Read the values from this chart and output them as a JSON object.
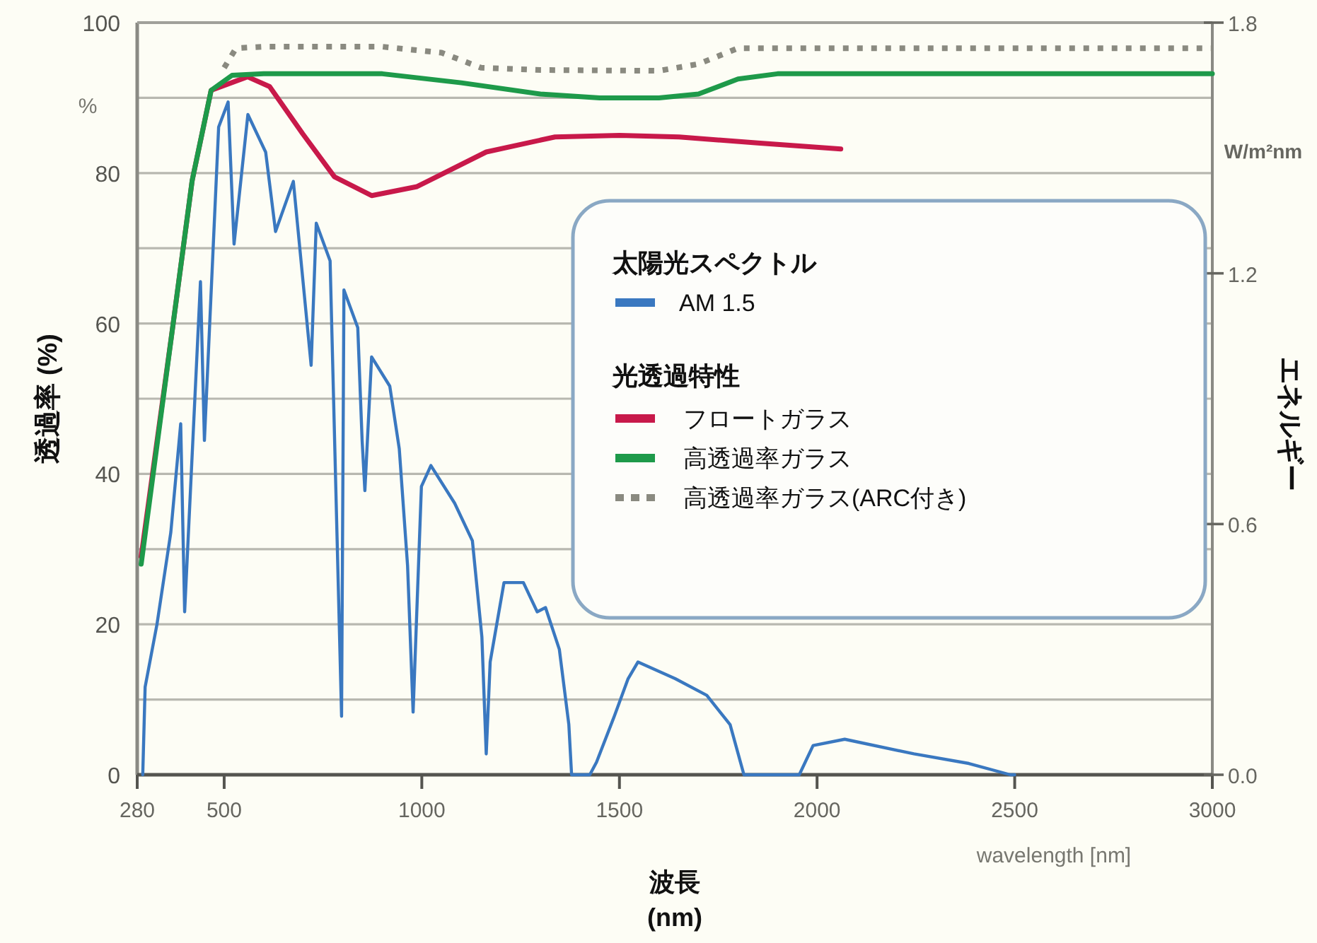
{
  "chart_data": {
    "type": "line",
    "xlabel": "波長 (nm)",
    "ylabel": "透過率 (%)",
    "y2label": "エネルギー",
    "legend_title": "太陽光スペクトル",
    "annotations": [
      "%",
      "W/m²nm",
      "wavelength [nm]",
      "光透過特性"
    ],
    "xlim": [
      280,
      3000
    ],
    "xticks": [
      280,
      500,
      1000,
      1500,
      2000,
      2500,
      3000
    ],
    "ylim": [
      0,
      100
    ],
    "yticks": [
      0,
      {
        "value": 10,
        "label": null
      },
      20,
      {
        "value": 30,
        "label": null
      },
      40,
      {
        "value": 50,
        "label": null
      },
      60,
      {
        "value": 70,
        "label": null
      },
      80,
      {
        "value": 90,
        "label": null
      },
      100
    ],
    "y2lim": [
      0,
      1.8
    ],
    "y2ticks": [
      {
        "value": 0,
        "label": "0.0"
      },
      {
        "value": 0.6,
        "label": "0.6"
      },
      {
        "value": 1.2,
        "label": "1.2"
      },
      {
        "value": 1.8,
        "label": "1.8"
      }
    ],
    "grid": "y",
    "legend": "right",
    "series": [
      {
        "name": "AM 1.5",
        "color": "#3a78c0",
        "axis": "y2",
        "x": [
          294,
          300,
          330,
          365,
          390,
          400,
          440,
          450,
          486,
          510,
          525,
          560,
          605,
          630,
          675,
          720,
          733,
          768,
          797,
          803,
          838,
          849,
          856,
          873,
          919,
          943,
          964,
          978,
          999,
          1023,
          1083,
          1128,
          1152,
          1163,
          1173,
          1208,
          1257,
          1292,
          1313,
          1348,
          1372,
          1379,
          1425,
          1442,
          1487,
          1522,
          1547,
          1641,
          1721,
          1780,
          1815,
          1955,
          1990,
          2070,
          2245,
          2384,
          2489,
          2500
        ],
        "values": [
          0,
          0.21,
          0.36,
          0.58,
          0.84,
          0.39,
          1.18,
          0.8,
          1.55,
          1.61,
          1.27,
          1.58,
          1.49,
          1.3,
          1.42,
          0.98,
          1.32,
          1.23,
          0.14,
          1.16,
          1.07,
          0.8,
          0.68,
          1.0,
          0.93,
          0.78,
          0.5,
          0.15,
          0.69,
          0.74,
          0.65,
          0.56,
          0.33,
          0.05,
          0.27,
          0.46,
          0.46,
          0.39,
          0.4,
          0.3,
          0.12,
          0,
          0,
          0.03,
          0.14,
          0.23,
          0.27,
          0.23,
          0.19,
          0.12,
          0,
          0,
          0.07,
          0.085,
          0.05,
          0.027,
          0,
          0
        ]
      },
      {
        "name": "フロートガラス",
        "color": "#c8194a",
        "x": [
          290,
          371,
          419,
          467,
          559,
          615,
          699,
          779,
          873,
          988,
          1163,
          1337,
          1500,
          1651,
          1850,
          2060
        ],
        "values": [
          29,
          60,
          79,
          91,
          92.8,
          91.5,
          85.2,
          79.5,
          77,
          78.2,
          82.8,
          84.8,
          85,
          84.8,
          84,
          83.2
        ]
      },
      {
        "name": "高透過率ガラス",
        "color": "#1e9a4a",
        "x": [
          290,
          371,
          419,
          467,
          520,
          600,
          900,
          1100,
          1300,
          1450,
          1600,
          1700,
          1800,
          1900,
          2100,
          3000
        ],
        "values": [
          28,
          60,
          79,
          91,
          93,
          93.2,
          93.2,
          92,
          90.5,
          90,
          90,
          90.5,
          92.5,
          93.2,
          93.2,
          93.2
        ]
      },
      {
        "name": "高透過率ガラス(ARC付き)",
        "color": "#8a8a80",
        "line_style": "dotted",
        "x": [
          500,
          530,
          600,
          900,
          1050,
          1150,
          1300,
          1600,
          1700,
          1800,
          2000,
          3000
        ],
        "values": [
          94,
          96.6,
          96.8,
          96.8,
          96,
          94,
          93.7,
          93.6,
          94.5,
          96.6,
          96.6,
          96.6
        ]
      }
    ]
  }
}
